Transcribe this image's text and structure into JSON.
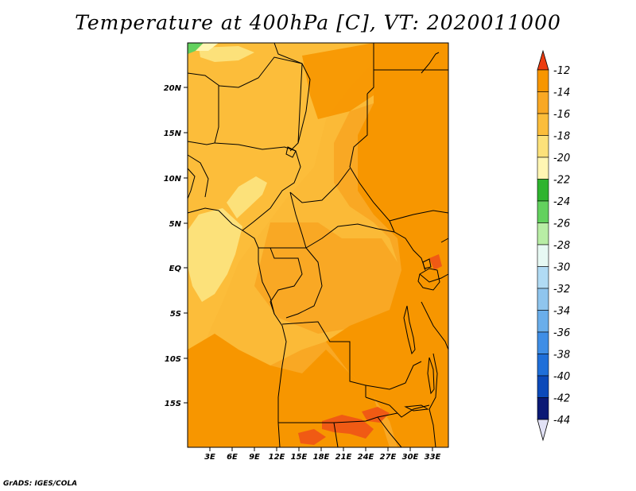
{
  "title": "Temperature at 400hPa [C], VT: 2020011000",
  "footer": "GrADS: IGES/COLA",
  "map": {
    "variable": "Temperature",
    "level": "400hPa",
    "units": "C",
    "valid_time": "2020011000",
    "lat_labels": [
      "20N",
      "15N",
      "10N",
      "5N",
      "EQ",
      "5S",
      "10S",
      "15S"
    ],
    "lon_labels": [
      "3E",
      "6E",
      "9E",
      "12E",
      "15E",
      "18E",
      "21E",
      "24E",
      "27E",
      "30E",
      "33E"
    ]
  },
  "colorbar": {
    "labels": [
      "-12",
      "-14",
      "-16",
      "-18",
      "-20",
      "-22",
      "-24",
      "-26",
      "-28",
      "-30",
      "-32",
      "-34",
      "-36",
      "-38",
      "-40",
      "-42",
      "-44"
    ],
    "colors": [
      "#f05a14",
      "#f79600",
      "#f9a824",
      "#fbbd3b",
      "#fce17a",
      "#fff6b3",
      "#2fb42f",
      "#63d15e",
      "#b8eda5",
      "#e7f9f3",
      "#b1dbf4",
      "#8fc5ee",
      "#6aaeeb",
      "#3f8ee6",
      "#1f6fd9",
      "#0b49b9",
      "#0a1975"
    ],
    "top_arrow_color": "#ec3c10",
    "bottom_arrow_color": "#e2e2f6"
  },
  "palette": {
    "t_m14_m12": "#f79600",
    "t_m16_m14": "#f9a824",
    "t_m18_m16": "#fbbd3b",
    "t_m20_m18": "#fce17a",
    "t_m12": "#f05a14",
    "t_m24": "#2fb42f",
    "t_m26": "#63d15e",
    "border": "#000000"
  }
}
